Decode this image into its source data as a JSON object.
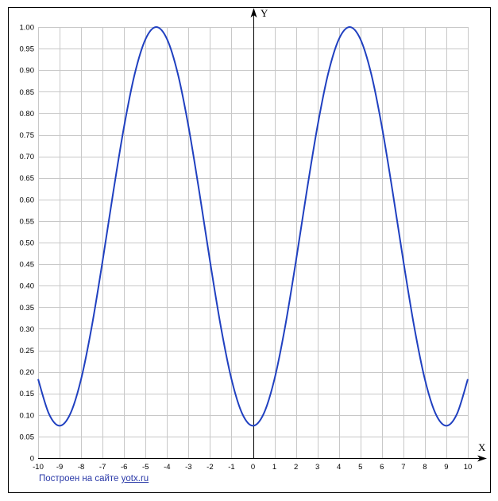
{
  "chart_data": {
    "type": "line",
    "title": "",
    "xlabel": "X",
    "ylabel": "Y",
    "xlim": [
      -10,
      10
    ],
    "ylim": [
      0,
      1
    ],
    "grid": true,
    "x_ticks": [
      "-10",
      "-9",
      "-8",
      "-7",
      "-6",
      "-5",
      "-4",
      "-3",
      "-2",
      "-1",
      "0",
      "1",
      "2",
      "3",
      "4",
      "5",
      "6",
      "7",
      "8",
      "9",
      "10"
    ],
    "y_ticks": [
      "0",
      "0.05",
      "0.10",
      "0.15",
      "0.20",
      "0.25",
      "0.30",
      "0.35",
      "0.40",
      "0.45",
      "0.50",
      "0.55",
      "0.60",
      "0.65",
      "0.70",
      "0.75",
      "0.80",
      "0.85",
      "0.90",
      "0.95",
      "1.00"
    ],
    "series": [
      {
        "color": "#2040c0",
        "x": [
          -10,
          -9.5,
          -9,
          -8.5,
          -8,
          -7.5,
          -7,
          -6.5,
          -6,
          -5.5,
          -5,
          -4.5,
          -4,
          -3.5,
          -3,
          -2.5,
          -2,
          -1.5,
          -1,
          -0.5,
          0,
          0.5,
          1,
          1.5,
          2,
          2.5,
          3,
          3.5,
          4,
          4.5,
          5,
          5.5,
          6,
          6.5,
          7,
          7.5,
          8,
          8.5,
          9,
          9.5,
          10
        ],
        "y": [
          0.183,
          0.103,
          0.075,
          0.103,
          0.183,
          0.306,
          0.457,
          0.618,
          0.769,
          0.892,
          0.972,
          1.0,
          0.972,
          0.892,
          0.769,
          0.618,
          0.457,
          0.306,
          0.183,
          0.103,
          0.075,
          0.103,
          0.183,
          0.306,
          0.457,
          0.618,
          0.769,
          0.892,
          0.972,
          1.0,
          0.972,
          0.892,
          0.769,
          0.618,
          0.457,
          0.306,
          0.183,
          0.103,
          0.075,
          0.103,
          0.183
        ]
      }
    ]
  },
  "credit": {
    "text": "Построен на сайте ",
    "link": "yotx.ru"
  }
}
